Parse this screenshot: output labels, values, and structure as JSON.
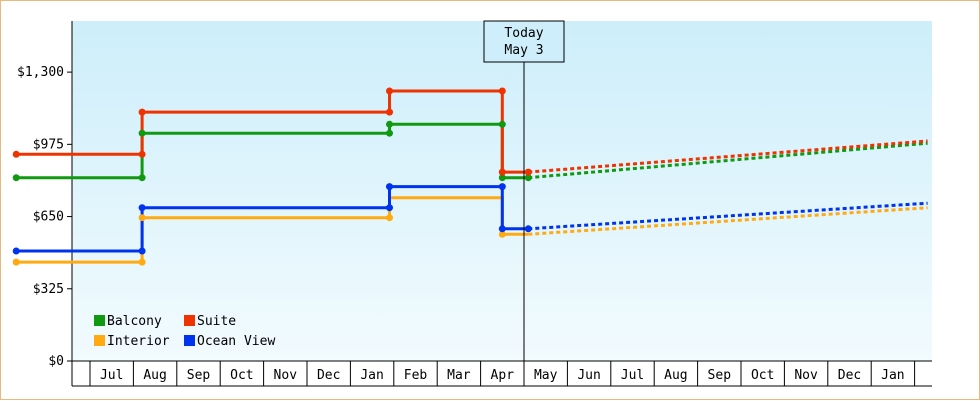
{
  "chart_data": {
    "type": "line",
    "y_ticks": [
      "$0",
      "$325",
      "$650",
      "$975",
      "$1,300"
    ],
    "y_tick_values": [
      0,
      325,
      650,
      975,
      1300
    ],
    "ylim": [
      0,
      1530
    ],
    "month_labels": [
      "Jul",
      "Aug",
      "Sep",
      "Oct",
      "Nov",
      "Dec",
      "Jan",
      "Feb",
      "Mar",
      "Apr",
      "May",
      "Jun",
      "Jul",
      "Aug",
      "Sep",
      "Oct",
      "Nov",
      "Dec",
      "Jan"
    ],
    "today": {
      "line1": "Today",
      "line2": "May 3"
    },
    "series": [
      {
        "name": "Balcony",
        "color": "#119911",
        "history": [
          [
            -2.2,
            825
          ],
          [
            0.7,
            825
          ],
          [
            0.7,
            1025
          ],
          [
            0.7,
            1025
          ],
          [
            6.4,
            1025
          ],
          [
            6.4,
            1065
          ],
          [
            9.0,
            1065
          ],
          [
            9.0,
            825
          ],
          [
            9.6,
            825
          ]
        ],
        "forecast": [
          [
            9.6,
            825
          ],
          [
            18.8,
            980
          ]
        ]
      },
      {
        "name": "Suite",
        "color": "#ee3300",
        "history": [
          [
            -2.2,
            930
          ],
          [
            0.7,
            930
          ],
          [
            0.7,
            1120
          ],
          [
            6.4,
            1120
          ],
          [
            6.4,
            1215
          ],
          [
            9.0,
            1215
          ],
          [
            9.0,
            850
          ],
          [
            9.6,
            850
          ]
        ],
        "forecast": [
          [
            9.6,
            850
          ],
          [
            18.8,
            990
          ]
        ]
      },
      {
        "name": "Interior",
        "color": "#ffaa11",
        "history": [
          [
            -2.2,
            445
          ],
          [
            0.7,
            445
          ],
          [
            0.7,
            645
          ],
          [
            6.4,
            645
          ],
          [
            6.4,
            735
          ],
          [
            9.0,
            735
          ],
          [
            9.0,
            570
          ],
          [
            9.6,
            570
          ]
        ],
        "forecast": [
          [
            9.6,
            570
          ],
          [
            18.8,
            690
          ]
        ]
      },
      {
        "name": "Ocean View",
        "color": "#0033ee",
        "history": [
          [
            -2.2,
            495
          ],
          [
            0.7,
            495
          ],
          [
            0.7,
            690
          ],
          [
            6.4,
            690
          ],
          [
            6.4,
            785
          ],
          [
            9.0,
            785
          ],
          [
            9.0,
            595
          ],
          [
            9.6,
            595
          ]
        ],
        "forecast": [
          [
            9.6,
            595
          ],
          [
            18.8,
            710
          ]
        ]
      }
    ],
    "markers": {
      "Balcony": [
        [
          -2.2,
          825
        ],
        [
          0.7,
          825
        ],
        [
          0.7,
          1025
        ],
        [
          6.4,
          1025
        ],
        [
          6.4,
          1065
        ],
        [
          9.0,
          1065
        ],
        [
          9.0,
          825
        ],
        [
          9.6,
          825
        ]
      ],
      "Suite": [
        [
          -2.2,
          930
        ],
        [
          0.7,
          930
        ],
        [
          0.7,
          1120
        ],
        [
          6.4,
          1120
        ],
        [
          6.4,
          1215
        ],
        [
          9.0,
          1215
        ],
        [
          9.0,
          850
        ],
        [
          9.6,
          850
        ]
      ],
      "Interior": [
        [
          -2.2,
          445
        ],
        [
          0.7,
          445
        ],
        [
          0.7,
          645
        ],
        [
          6.4,
          645
        ],
        [
          9.0,
          570
        ]
      ],
      "Ocean View": [
        [
          -2.2,
          495
        ],
        [
          0.7,
          495
        ],
        [
          0.7,
          690
        ],
        [
          6.4,
          690
        ],
        [
          6.4,
          785
        ],
        [
          9.0,
          785
        ],
        [
          9.0,
          595
        ],
        [
          9.6,
          595
        ]
      ]
    },
    "legend": {
      "placement": "bottom-left",
      "items": [
        {
          "label": "Balcony",
          "color": "#119911"
        },
        {
          "label": "Suite",
          "color": "#ee3300"
        },
        {
          "label": "Interior",
          "color": "#ffaa11"
        },
        {
          "label": "Ocean View",
          "color": "#0033ee"
        }
      ]
    },
    "background_gradient": [
      "#cdeefa",
      "#f2fbfe"
    ],
    "grid": false
  }
}
